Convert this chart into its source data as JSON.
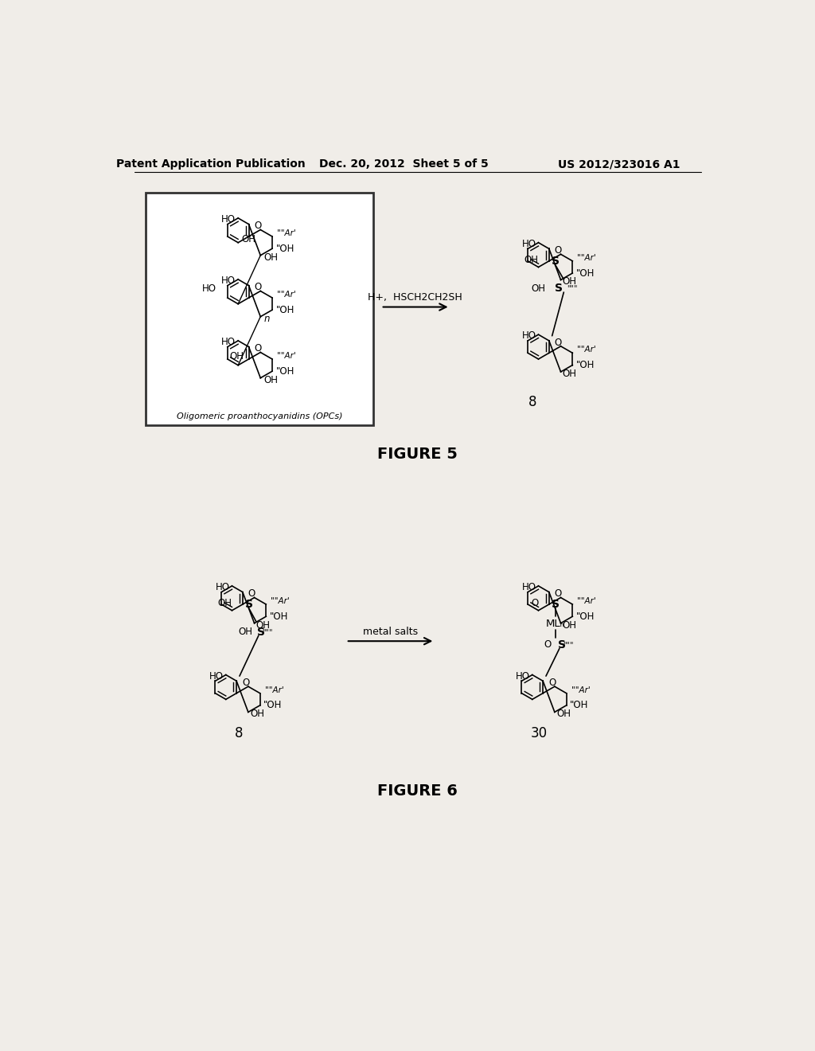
{
  "page_title_left": "Patent Application Publication",
  "page_title_center": "Dec. 20, 2012  Sheet 5 of 5",
  "page_title_right": "US 2012/323016 A1",
  "figure5_label": "FIGURE 5",
  "figure6_label": "FIGURE 6",
  "reaction1_reagent": "H+,  HSCH2CH2SH",
  "reaction2_reagent": "metal salts",
  "compound8_label": "8",
  "compound30_label": "30",
  "box_label": "Oligomeric proanthocyanidins (OPCs)",
  "bg_color": "#f5f5f0",
  "fg_color": "#000000",
  "header_fontsize": 10,
  "fig_label_fontsize": 13
}
